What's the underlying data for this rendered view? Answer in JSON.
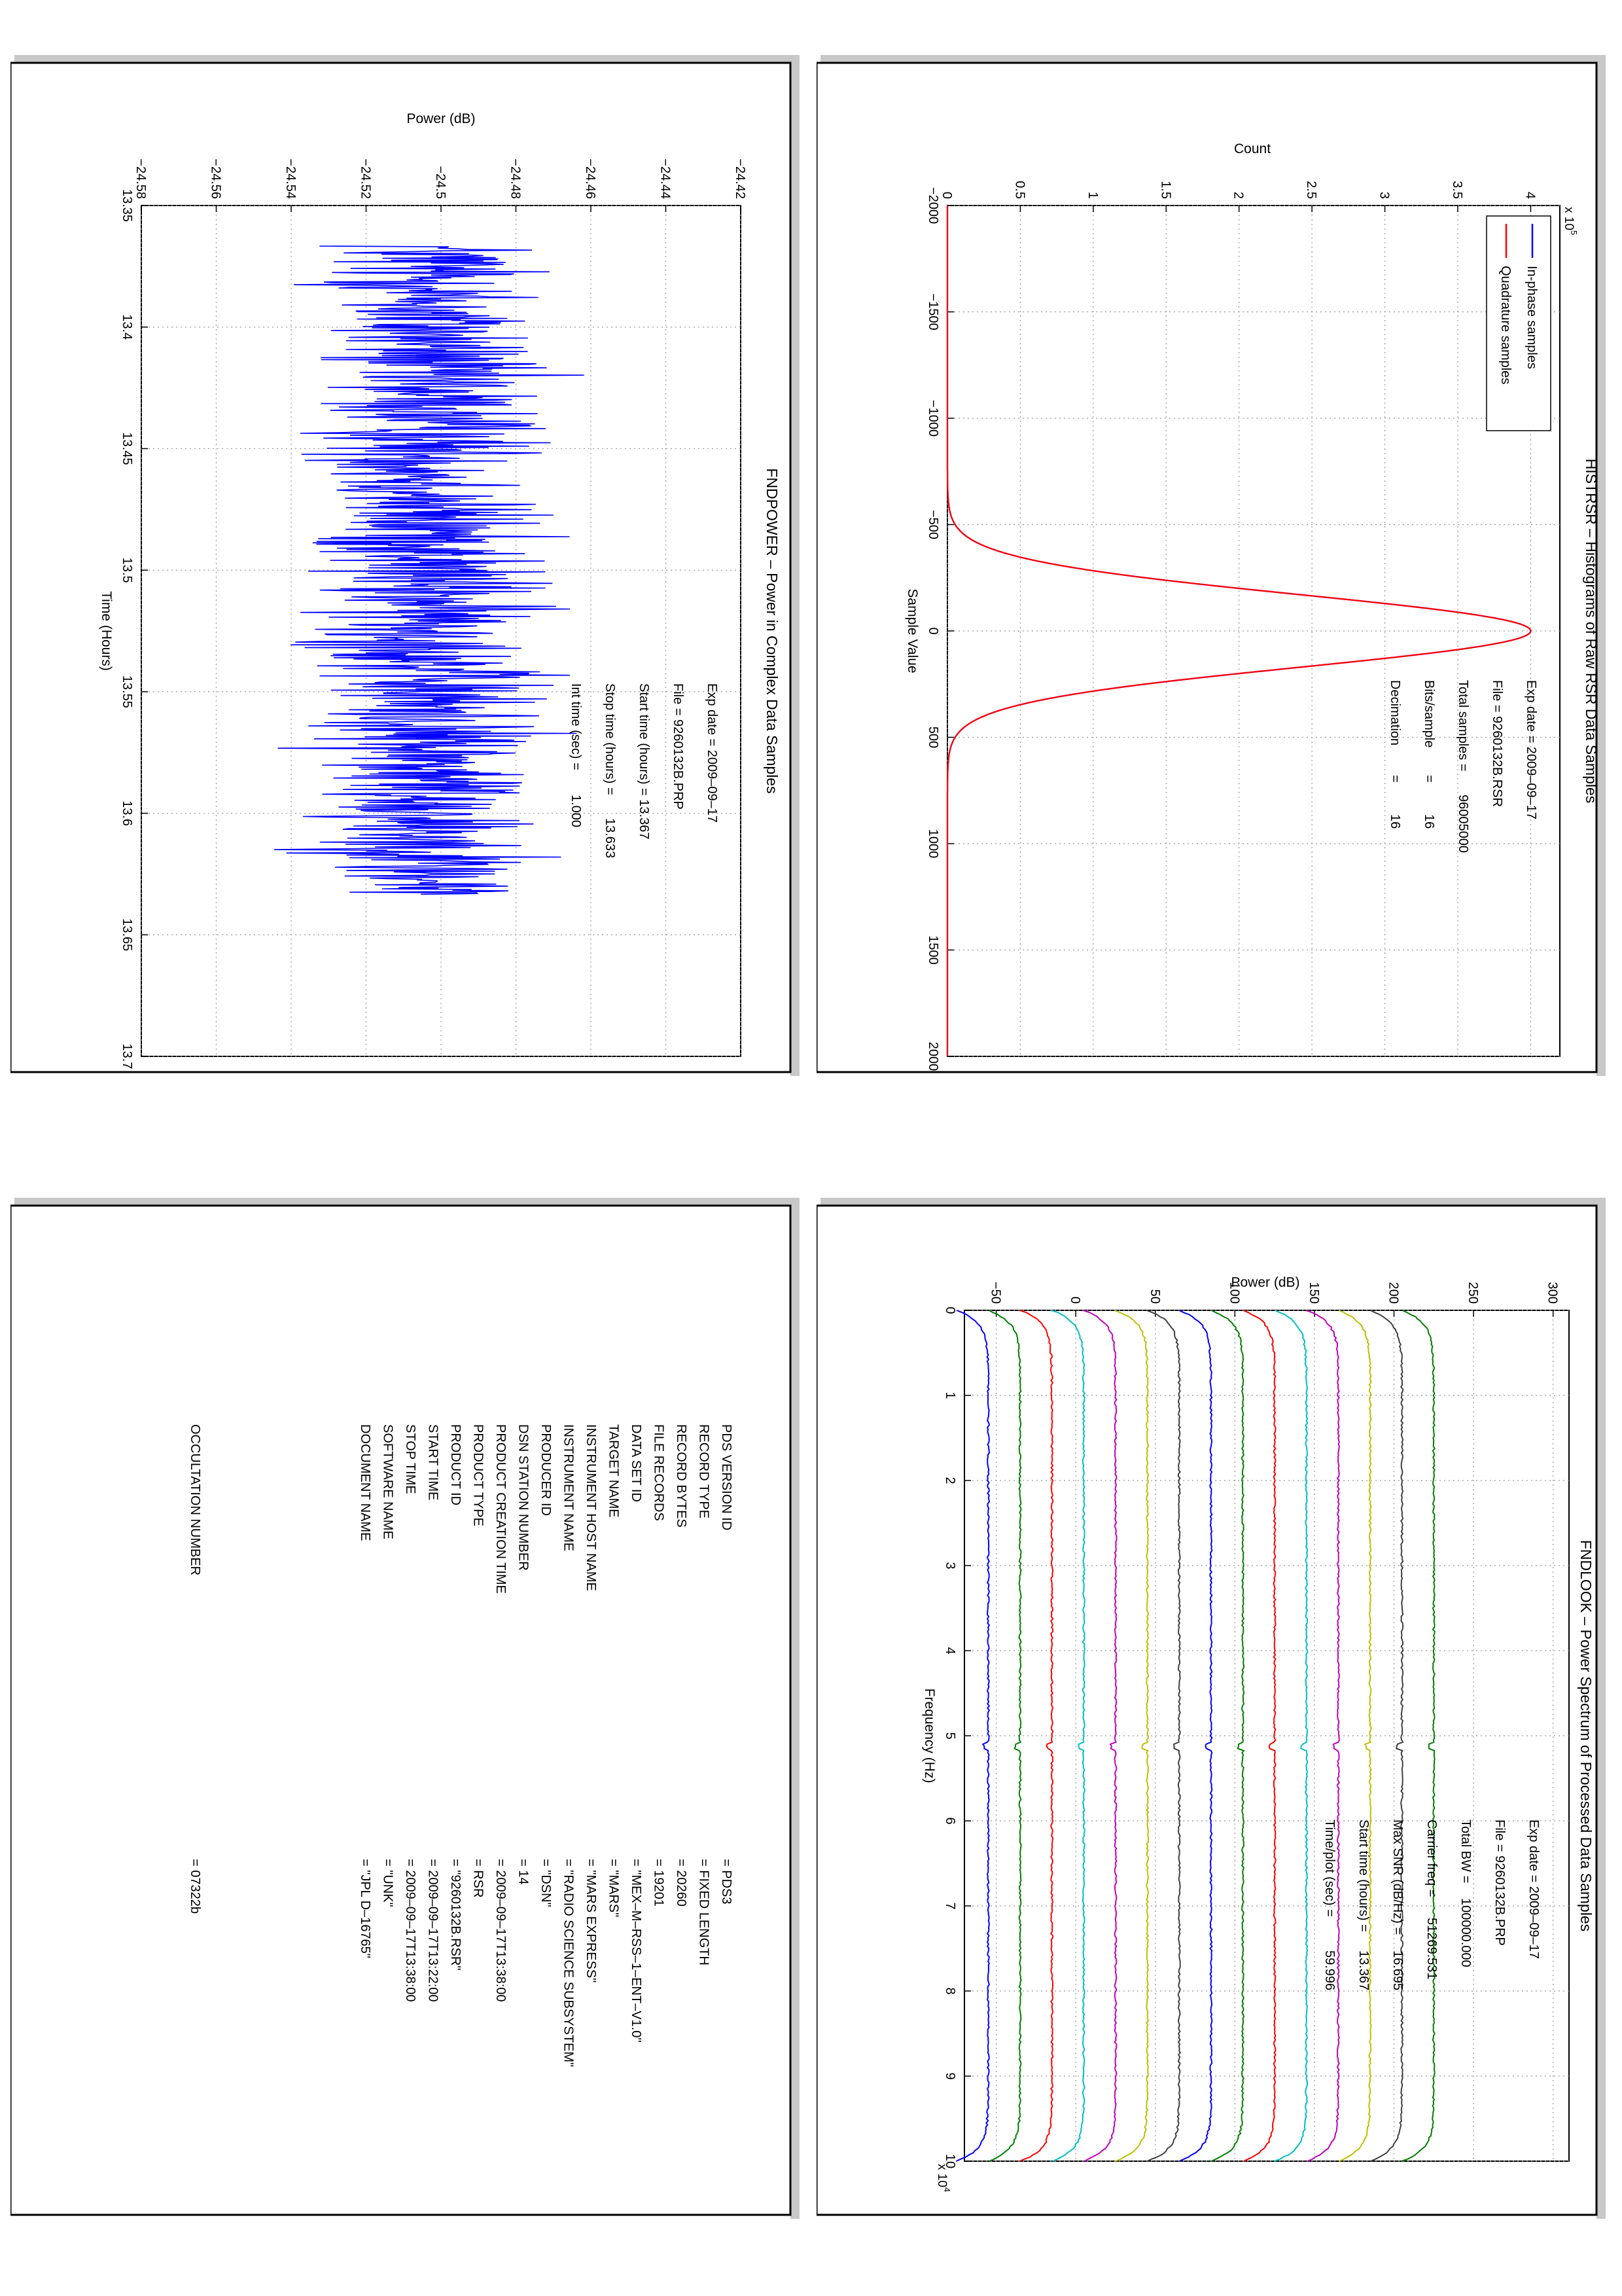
{
  "chart_data": [
    {
      "type": "line",
      "title": "HISTRSR – Histograms of Raw RSR Data Samples",
      "xlabel": "Sample Value",
      "ylabel": "Count",
      "xlim": [
        -2000,
        2000
      ],
      "ylim": [
        0,
        420000
      ],
      "xticks": [
        -2000,
        -1500,
        -1000,
        -500,
        0,
        500,
        1000,
        1500,
        2000
      ],
      "yticks": [
        0,
        0.5,
        1,
        1.5,
        2,
        2.5,
        3,
        3.5,
        4
      ],
      "y_exponent": "x 10",
      "y_exponent_power": "5",
      "grid": true,
      "legend_position": "top-left",
      "series": [
        {
          "name": "In-phase samples",
          "color": "#0000ff",
          "peak": 400000,
          "sigma": 170
        },
        {
          "name": "Quadrature samples",
          "color": "#ff0000",
          "peak": 400000,
          "sigma": 170
        }
      ],
      "annotations": {
        "exp_date": "Exp date = 2009–09–17",
        "file": "File = 9260132B.RSR",
        "total_samples_label": "Total samples =",
        "total_samples_value": "96005000",
        "bits_label": "Bits/sample",
        "bits_eq": "=",
        "bits_value": "16",
        "decimation_label": "Decimation",
        "decimation_eq": "=",
        "decimation_value": "16"
      }
    },
    {
      "type": "line",
      "title": "FNDPOWER – Power in Complex Data Samples",
      "xlabel": "Time (Hours)",
      "ylabel": "Power (dB)",
      "xlim": [
        13.35,
        13.7
      ],
      "ylim": [
        -24.58,
        -24.42
      ],
      "xticks": [
        13.35,
        13.4,
        13.45,
        13.5,
        13.55,
        13.6,
        13.65,
        13.7
      ],
      "xtick_labels": [
        "13.35",
        "13.4",
        "13.45",
        "13.5",
        "13.55",
        "13.6",
        "13.65",
        "13.7"
      ],
      "yticks": [
        -24.58,
        -24.56,
        -24.54,
        -24.52,
        -24.5,
        -24.48,
        -24.46,
        -24.44,
        -24.42
      ],
      "ytick_labels": [
        "−24.58",
        "−24.56",
        "−24.54",
        "−24.52",
        "−24.5",
        "−24.48",
        "−24.46",
        "−24.44",
        "−24.42"
      ],
      "grid": true,
      "series": [
        {
          "color": "#0000ff",
          "x_start": 13.3667,
          "x_end": 13.6333,
          "mean": -24.503,
          "amplitude": 0.016
        }
      ],
      "annotations": {
        "exp_date": "Exp date = 2009–09–17",
        "file": "File = 9260132B.PRP",
        "start_time": "Start time (hours) = 13.367",
        "stop_time_label": "Stop time (hours) =",
        "stop_time_value": "13.633",
        "int_time_label": "Int time (sec) =",
        "int_time_value": "1.000"
      }
    },
    {
      "type": "line",
      "title": "FNDLOOK – Power Spectrum of Processed Data Samples",
      "xlabel": "Frequency (Hz)",
      "ylabel": "Power (dB)",
      "xlim": [
        0,
        100000
      ],
      "ylim": [
        -70,
        310
      ],
      "xticks": [
        0,
        1,
        2,
        3,
        4,
        5,
        6,
        7,
        8,
        9,
        10
      ],
      "x_exponent": "x 10",
      "x_exponent_power": "4",
      "yticks": [
        -50,
        0,
        50,
        100,
        150,
        200,
        250,
        300
      ],
      "ytick_labels": [
        "−50",
        "0",
        "50",
        "100",
        "150",
        "200",
        "250",
        "300"
      ],
      "grid": true,
      "series": [
        {
          "color": "#0000ff",
          "level": -55
        },
        {
          "color": "#007f00",
          "level": -35
        },
        {
          "color": "#ff0000",
          "level": -15
        },
        {
          "color": "#00bfbf",
          "level": 5
        },
        {
          "color": "#bf00bf",
          "level": 25
        },
        {
          "color": "#bfbf00",
          "level": 45
        },
        {
          "color": "#404040",
          "level": 65
        },
        {
          "color": "#0000ff",
          "level": 85
        },
        {
          "color": "#007f00",
          "level": 105
        },
        {
          "color": "#ff0000",
          "level": 125
        },
        {
          "color": "#00bfbf",
          "level": 145
        },
        {
          "color": "#bf00bf",
          "level": 165
        },
        {
          "color": "#bfbf00",
          "level": 185
        },
        {
          "color": "#404040",
          "level": 205
        },
        {
          "color": "#007f00",
          "level": 225
        }
      ],
      "annotations": {
        "exp_date": "Exp date = 2009–09–17",
        "file": "File = 9260132B.PRP",
        "total_bw_label": "Total BW =",
        "total_bw_value": "100000.000",
        "carrier_label": "Carrier freq =",
        "carrier_value": "51269.531",
        "snr_label": "Max SNR (dB/Hz) =",
        "snr_value": "16.695",
        "start_label": "Start time (hours) =",
        "start_value": "13.367",
        "timeplot_label": "Time/plot (sec) =",
        "timeplot_value": "59.996"
      }
    },
    {
      "type": "table",
      "rows": [
        {
          "key": "PDS VERSION ID",
          "value": "= PDS3"
        },
        {
          "key": "RECORD TYPE",
          "value": "= FIXED LENGTH"
        },
        {
          "key": "RECORD BYTES",
          "value": "= 20260"
        },
        {
          "key": "FILE RECORDS",
          "value": "= 19201"
        },
        {
          "key": "DATA SET ID",
          "value": "= \"MEX–M–RSS–1–ENT–V1.0\""
        },
        {
          "key": "TARGET NAME",
          "value": "= \"MARS\""
        },
        {
          "key": "INSTRUMENT HOST NAME",
          "value": "= \"MARS EXPRESS\""
        },
        {
          "key": "INSTRUMENT NAME",
          "value": "= \"RADIO SCIENCE SUBSYSTEM\""
        },
        {
          "key": "PRODUCER ID",
          "value": "= \"DSN\""
        },
        {
          "key": "DSN STATION NUMBER",
          "value": "= 14"
        },
        {
          "key": "PRODUCT CREATION TIME",
          "value": "= 2009–09–17T13:38:00"
        },
        {
          "key": "PRODUCT TYPE",
          "value": "= RSR"
        },
        {
          "key": "PRODUCT ID",
          "value": "= \"9260132B.RSR\""
        },
        {
          "key": "START TIME",
          "value": "= 2009–09–17T13:22:00"
        },
        {
          "key": "STOP TIME",
          "value": "= 2009–09–17T13:38:00"
        },
        {
          "key": "SOFTWARE NAME",
          "value": "= \"UNK\""
        },
        {
          "key": "DOCUMENT NAME",
          "value": "= \"JPL D–16765\""
        }
      ],
      "occultation_key": "OCCULTATION NUMBER",
      "occultation_value": "= 07322b"
    }
  ]
}
